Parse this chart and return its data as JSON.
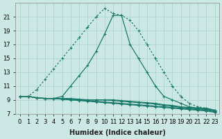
{
  "xlabel": "Humidex (Indice chaleur)",
  "ylabel": "",
  "background_color": "#cce8e4",
  "grid_color": "#b0d8d0",
  "line_color": "#1a7a6a",
  "x_values": [
    0,
    1,
    2,
    3,
    4,
    5,
    6,
    7,
    8,
    9,
    10,
    11,
    12,
    13,
    14,
    15,
    16,
    17,
    18,
    19,
    20,
    21,
    22,
    23
  ],
  "curve_dotted": [
    9.5,
    9.5,
    10.5,
    12.0,
    13.5,
    15.0,
    16.5,
    18.0,
    19.5,
    21.0,
    22.2,
    21.5,
    21.2,
    20.5,
    19.0,
    17.0,
    15.0,
    13.0,
    11.0,
    9.5,
    8.5,
    8.0,
    7.8,
    7.5
  ],
  "curve_solid": [
    9.5,
    9.5,
    9.3,
    9.2,
    9.2,
    9.5,
    11.0,
    12.5,
    14.0,
    16.0,
    18.5,
    21.2,
    21.2,
    17.0,
    15.0,
    13.0,
    11.0,
    9.5,
    9.0,
    8.5,
    8.0,
    7.8,
    7.8,
    7.5
  ],
  "flat1": [
    9.5,
    9.5,
    9.3,
    9.2,
    9.2,
    9.2,
    9.2,
    9.1,
    9.0,
    9.0,
    9.0,
    9.0,
    8.9,
    8.8,
    8.7,
    8.6,
    8.5,
    8.3,
    8.2,
    8.0,
    7.9,
    7.8,
    7.7,
    7.5
  ],
  "flat2": [
    9.5,
    9.5,
    9.3,
    9.2,
    9.2,
    9.2,
    9.1,
    9.0,
    9.0,
    9.0,
    9.0,
    8.9,
    8.8,
    8.7,
    8.6,
    8.5,
    8.4,
    8.2,
    8.1,
    7.9,
    7.8,
    7.7,
    7.6,
    7.4
  ],
  "flat3": [
    9.5,
    9.5,
    9.3,
    9.2,
    9.2,
    9.1,
    9.0,
    9.0,
    8.9,
    8.8,
    8.7,
    8.6,
    8.5,
    8.4,
    8.3,
    8.2,
    8.1,
    8.0,
    7.9,
    7.8,
    7.7,
    7.6,
    7.5,
    7.3
  ],
  "flat4": [
    9.5,
    9.5,
    9.3,
    9.2,
    9.2,
    9.1,
    9.0,
    8.9,
    8.8,
    8.7,
    8.6,
    8.5,
    8.4,
    8.3,
    8.2,
    8.1,
    8.0,
    7.9,
    7.8,
    7.7,
    7.6,
    7.5,
    7.4,
    7.2
  ],
  "ylim": [
    7,
    23
  ],
  "xlim": [
    -0.5,
    23.5
  ],
  "yticks": [
    7,
    9,
    11,
    13,
    15,
    17,
    19,
    21
  ],
  "xticks": [
    0,
    1,
    2,
    3,
    4,
    5,
    6,
    7,
    8,
    9,
    10,
    11,
    12,
    13,
    14,
    15,
    16,
    17,
    18,
    19,
    20,
    21,
    22,
    23
  ],
  "tick_fontsize": 6.0,
  "xlabel_fontsize": 7.0
}
